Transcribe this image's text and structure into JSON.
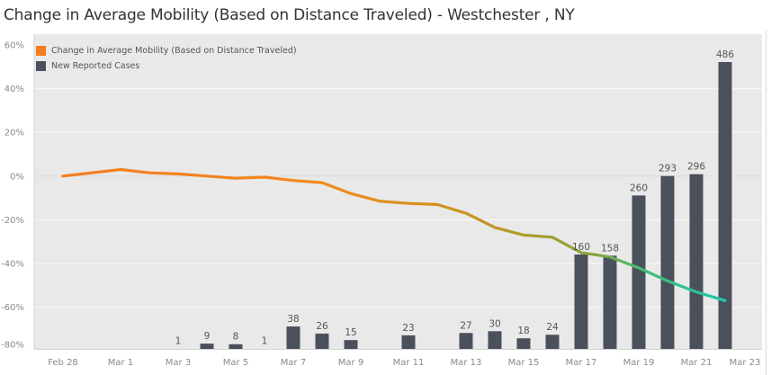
{
  "title": "Change in Average Mobility (Based on Distance Traveled) -  Westchester , NY",
  "legend": {
    "items": [
      {
        "label": "Change in Average Mobility (Based on Distance Traveled)",
        "color": "#f57c1f"
      },
      {
        "label": "New Reported Cases",
        "color": "#4a515c"
      }
    ]
  },
  "colors": {
    "plot_bg": "#e9e9e9",
    "gridline": "#f6f6f6",
    "bar": "#4a515c",
    "line_start": "#f57c1f",
    "line_mid": "#8aa43a",
    "line_end": "#1fc6ae"
  },
  "axis": {
    "y_ticks": [
      "60%",
      "40%",
      "20%",
      "0%",
      "-20%",
      "-40%",
      "-60%",
      "-80%"
    ],
    "x_ticks": [
      "Feb 28",
      "Mar 1",
      "Mar 3",
      "Mar 5",
      "Mar 7",
      "Mar 9",
      "Mar 11",
      "Mar 13",
      "Mar 15",
      "Mar 17",
      "Mar 19",
      "Mar 21",
      "Mar 23"
    ]
  },
  "chart_data": {
    "type": "bar+line",
    "title": "Change in Average Mobility (Based on Distance Traveled) -  Westchester , NY",
    "xlabel": "",
    "ylabel": "",
    "ylim": [
      -80,
      60
    ],
    "grid": true,
    "legend_position": "top-left inside",
    "x_tick_labels": [
      "Feb 28",
      "Mar 1",
      "Mar 3",
      "Mar 5",
      "Mar 7",
      "Mar 9",
      "Mar 11",
      "Mar 13",
      "Mar 15",
      "Mar 17",
      "Mar 19",
      "Mar 21",
      "Mar 23"
    ],
    "y_tick_labels": [
      "60%",
      "40%",
      "20%",
      "0%",
      "-20%",
      "-40%",
      "-60%",
      "-80%"
    ],
    "series": [
      {
        "name": "Change in Average Mobility (Based on Distance Traveled)",
        "type": "line",
        "unit": "%",
        "x": [
          "Feb 28",
          "Feb 29",
          "Mar 1",
          "Mar 2",
          "Mar 3",
          "Mar 4",
          "Mar 5",
          "Mar 6",
          "Mar 7",
          "Mar 8",
          "Mar 9",
          "Mar 10",
          "Mar 11",
          "Mar 12",
          "Mar 13",
          "Mar 14",
          "Mar 15",
          "Mar 16",
          "Mar 17",
          "Mar 18",
          "Mar 19",
          "Mar 20",
          "Mar 21",
          "Mar 22"
        ],
        "values": [
          0,
          1.5,
          3,
          1.5,
          1,
          0,
          -1,
          -0.5,
          -2,
          -3,
          -8,
          -11.5,
          -12.5,
          -13,
          -17,
          -23.5,
          -27,
          -28,
          -35,
          -37,
          -42,
          -48,
          -53,
          -57
        ]
      },
      {
        "name": "New Reported Cases",
        "type": "bar",
        "x": [
          "Mar 3",
          "Mar 4",
          "Mar 5",
          "Mar 6",
          "Mar 7",
          "Mar 8",
          "Mar 9",
          "Mar 11",
          "Mar 13",
          "Mar 14",
          "Mar 15",
          "Mar 16",
          "Mar 17",
          "Mar 18",
          "Mar 19",
          "Mar 20",
          "Mar 21",
          "Mar 22"
        ],
        "values": [
          1,
          9,
          8,
          1,
          38,
          26,
          15,
          23,
          27,
          30,
          18,
          24,
          160,
          158,
          260,
          293,
          296,
          486
        ]
      }
    ]
  }
}
